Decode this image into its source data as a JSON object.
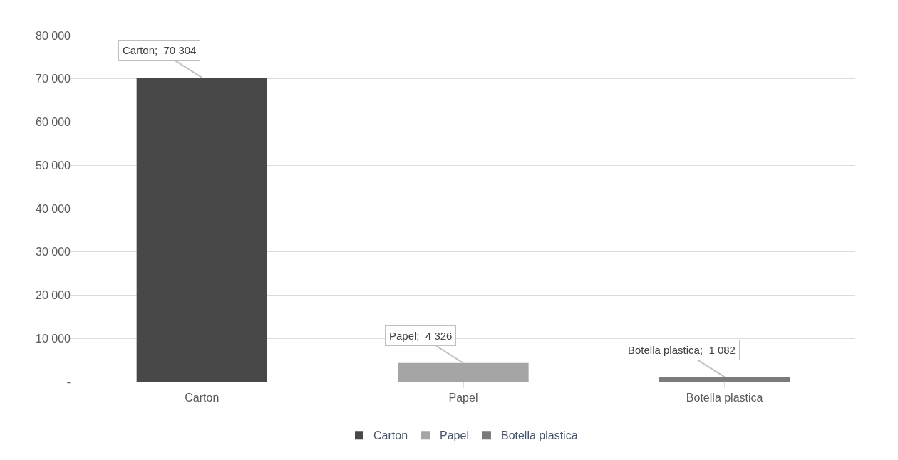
{
  "chart_data": {
    "type": "bar",
    "categories": [
      "Carton",
      "Papel",
      "Botella plastica"
    ],
    "series": [
      {
        "name": "Carton",
        "color": "#484848",
        "values": [
          70304,
          null,
          null
        ],
        "value_labels": [
          "Carton;  70 304",
          null,
          null
        ]
      },
      {
        "name": "Papel",
        "color": "#a5a5a5",
        "values": [
          null,
          4326,
          null
        ],
        "value_labels": [
          null,
          "Papel;  4 326",
          null
        ]
      },
      {
        "name": "Botella plastica",
        "color": "#7b7b7b",
        "values": [
          null,
          null,
          1082
        ],
        "value_labels": [
          null,
          null,
          "Botella plastica;  1 082"
        ]
      }
    ],
    "ylim": [
      0,
      80000
    ],
    "yticks": [
      {
        "value": 0,
        "label": "-"
      },
      {
        "value": 10000,
        "label": "10 000"
      },
      {
        "value": 20000,
        "label": "20 000"
      },
      {
        "value": 30000,
        "label": "30 000"
      },
      {
        "value": 40000,
        "label": "40 000"
      },
      {
        "value": 50000,
        "label": "50 000"
      },
      {
        "value": 60000,
        "label": "60 000"
      },
      {
        "value": 70000,
        "label": "70 000"
      },
      {
        "value": 80000,
        "label": "80 000"
      }
    ],
    "grid": "y",
    "legend": "bottom"
  }
}
